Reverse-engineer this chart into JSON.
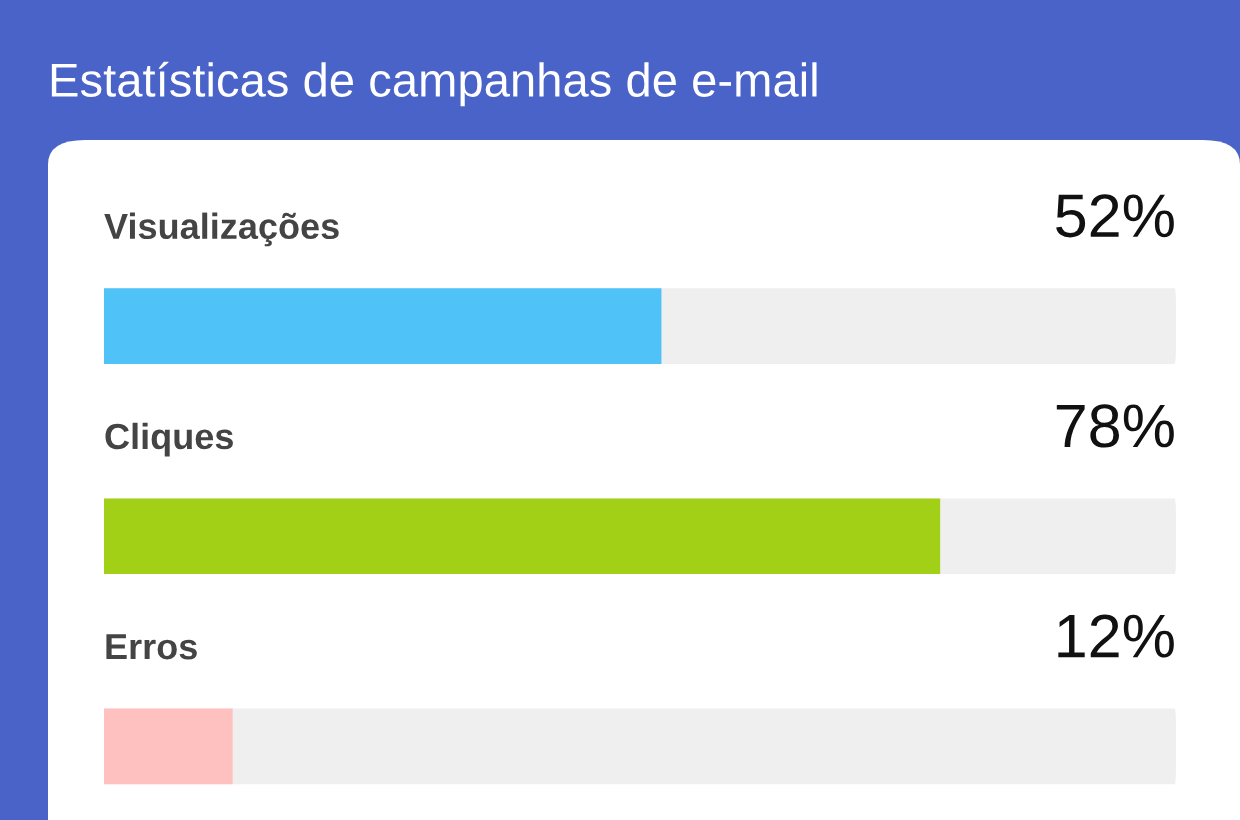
{
  "chart_data": {
    "type": "bar",
    "orientation": "horizontal",
    "title": "Estatísticas de campanhas de e-mail",
    "categories": [
      "Visualizações",
      "Cliques",
      "Erros"
    ],
    "values": [
      52,
      78,
      12
    ],
    "colors": [
      "#4fc3f7",
      "#a2d016",
      "#ffc0c0"
    ],
    "value_labels": [
      "52%",
      "78%",
      "12%"
    ],
    "xlim": [
      0,
      100
    ]
  }
}
